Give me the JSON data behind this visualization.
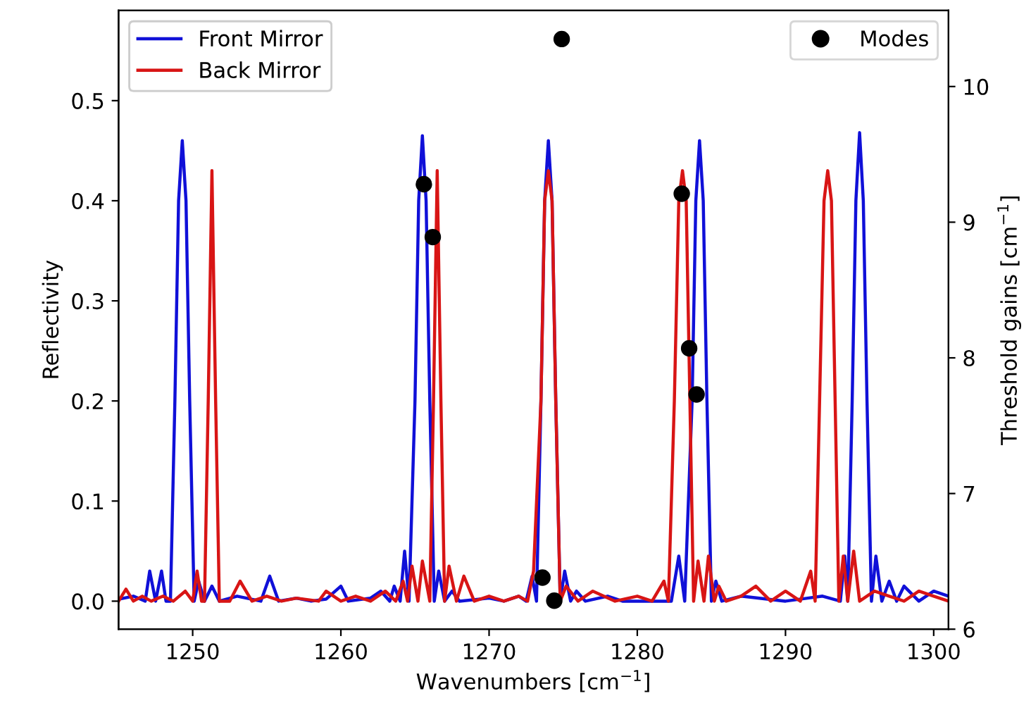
{
  "chart_data": {
    "type": "line",
    "xlabel": "Wavenumbers [cm$^{−1}$]",
    "ylabel": "Reflectivity",
    "y2label": "Threshold gains [cm$^{−1}$]",
    "xlim": [
      1245,
      1301
    ],
    "xticks": [
      1250,
      1260,
      1270,
      1280,
      1290,
      1300
    ],
    "ylim": [
      -0.028,
      0.59
    ],
    "yticks": [
      {
        "value": 0,
        "label": "0.0"
      },
      {
        "value": 0.1,
        "label": "0.1"
      },
      {
        "value": 0.2,
        "label": "0.2"
      },
      {
        "value": 0.3,
        "label": "0.3"
      },
      {
        "value": 0.4,
        "label": "0.4"
      },
      {
        "value": 0.5,
        "label": "0.5"
      }
    ],
    "y2lim": [
      6,
      10.56
    ],
    "y2ticks": [
      6,
      7,
      8,
      9,
      10
    ],
    "grid": false,
    "legend": "top left",
    "marker": "none",
    "line_style": "solid",
    "series": [
      {
        "name": "Front Mirror",
        "color": "#1010d8",
        "x": [
          1245,
          1246,
          1246.8,
          1247.1,
          1247.5,
          1247.9,
          1248.2,
          1248.5,
          1248.8,
          1249.05,
          1249.3,
          1249.55,
          1249.8,
          1250.1,
          1250.4,
          1250.8,
          1251.3,
          1251.8,
          1253,
          1254.6,
          1255.2,
          1255.8,
          1257,
          1258,
          1259,
          1260,
          1260.5,
          1262,
          1262.7,
          1263.3,
          1263.6,
          1264,
          1264.3,
          1264.6,
          1265.0,
          1265.25,
          1265.5,
          1265.75,
          1266.0,
          1266.3,
          1266.6,
          1267,
          1267.5,
          1268,
          1270,
          1271,
          1272,
          1272.5,
          1272.9,
          1273.2,
          1273.5,
          1273.75,
          1274.0,
          1274.25,
          1274.5,
          1274.8,
          1275.1,
          1275.5,
          1275.9,
          1276.5,
          1278,
          1279,
          1281,
          1282.3,
          1282.8,
          1283.2,
          1283.7,
          1283.95,
          1284.2,
          1284.45,
          1284.7,
          1285.0,
          1285.3,
          1285.7,
          1287,
          1290,
          1291.5,
          1292.5,
          1293.7,
          1294.0,
          1294.2,
          1294.5,
          1294.75,
          1295.0,
          1295.25,
          1295.5,
          1295.8,
          1296.1,
          1296.5,
          1297,
          1297.5,
          1298,
          1299,
          1300,
          1301
        ],
        "values": [
          0.002,
          0.005,
          0.0,
          0.03,
          0.0,
          0.03,
          0.0,
          0.0,
          0.2,
          0.4,
          0.46,
          0.4,
          0.2,
          0.0,
          0.02,
          0.0,
          0.015,
          0.0,
          0.005,
          0.0,
          0.025,
          0.0,
          0.003,
          0.0,
          0.002,
          0.015,
          0.0,
          0.003,
          0.01,
          0.0,
          0.015,
          0.0,
          0.05,
          0.0,
          0.2,
          0.4,
          0.465,
          0.4,
          0.2,
          0.0,
          0.03,
          0.0,
          0.01,
          0.0,
          0.003,
          0.0,
          0.005,
          0.0,
          0.025,
          0.0,
          0.2,
          0.4,
          0.46,
          0.4,
          0.2,
          0.0,
          0.03,
          0.0,
          0.01,
          0.0,
          0.005,
          0.0,
          0.0,
          0.0,
          0.045,
          0.0,
          0.2,
          0.4,
          0.46,
          0.4,
          0.2,
          0.0,
          0.02,
          0.0,
          0.005,
          0.0,
          0.003,
          0.005,
          0.0,
          0.045,
          0.0,
          0.2,
          0.4,
          0.468,
          0.4,
          0.2,
          0.0,
          0.045,
          0.0,
          0.02,
          0.0,
          0.015,
          0.0,
          0.01,
          0.005
        ]
      },
      {
        "name": "Back Mirror",
        "color": "#d81515",
        "x": [
          1245,
          1245.5,
          1246,
          1246.6,
          1247.2,
          1248,
          1248.7,
          1249.5,
          1250,
          1250.3,
          1250.6,
          1250.8,
          1251.05,
          1251.3,
          1251.55,
          1251.8,
          1252.1,
          1252.5,
          1253.2,
          1254,
          1255,
          1256,
          1257,
          1258.5,
          1259,
          1260,
          1261,
          1262,
          1263,
          1263.7,
          1264.2,
          1264.5,
          1264.8,
          1265.2,
          1265.5,
          1266.0,
          1266.25,
          1266.5,
          1266.75,
          1267.0,
          1267.3,
          1267.8,
          1268.3,
          1269,
          1270,
          1271,
          1272,
          1272.6,
          1273.0,
          1273.5,
          1273.75,
          1274.0,
          1274.25,
          1274.5,
          1274.8,
          1275.2,
          1276,
          1277,
          1278.5,
          1280,
          1281,
          1281.8,
          1282.1,
          1282.5,
          1282.8,
          1283.05,
          1283.3,
          1283.55,
          1283.8,
          1284.1,
          1284.5,
          1284.8,
          1285.2,
          1285.5,
          1286,
          1287,
          1288,
          1289,
          1290,
          1291,
          1291.7,
          1292.0,
          1292.3,
          1292.6,
          1292.85,
          1293.1,
          1293.35,
          1293.6,
          1293.9,
          1294.2,
          1294.6,
          1295,
          1296,
          1297,
          1298,
          1299,
          1300,
          1301
        ],
        "values": [
          0.0,
          0.012,
          0.0,
          0.005,
          0.0,
          0.005,
          0.0,
          0.01,
          0.0,
          0.03,
          0.0,
          0.0,
          0.2,
          0.43,
          0.2,
          0.0,
          0.0,
          0.0,
          0.02,
          0.0,
          0.005,
          0.0,
          0.003,
          0.0,
          0.01,
          0.0,
          0.005,
          0.0,
          0.01,
          0.0,
          0.02,
          0.0,
          0.035,
          0.0,
          0.04,
          0.0,
          0.2,
          0.43,
          0.2,
          0.0,
          0.035,
          0.0,
          0.025,
          0.0,
          0.005,
          0.0,
          0.005,
          0.0,
          0.03,
          0.2,
          0.4,
          0.43,
          0.4,
          0.2,
          0.0,
          0.015,
          0.0,
          0.01,
          0.0,
          0.005,
          0.0,
          0.02,
          0.0,
          0.2,
          0.4,
          0.43,
          0.4,
          0.2,
          0.0,
          0.04,
          0.0,
          0.045,
          0.0,
          0.015,
          0.0,
          0.005,
          0.015,
          0.0,
          0.01,
          0.0,
          0.03,
          0.0,
          0.2,
          0.4,
          0.43,
          0.4,
          0.2,
          0.0,
          0.045,
          0.0,
          0.05,
          0.0,
          0.01,
          0.005,
          0.0,
          0.01,
          0.005,
          0.0
        ]
      },
      {
        "name": "Modes",
        "type": "scatter",
        "axis": "y2",
        "marker": "circle",
        "color": "#000000",
        "x": [
          1265.6,
          1266.2,
          1273.6,
          1274.4,
          1274.9,
          1283.0,
          1283.5,
          1284.0
        ],
        "values": [
          9.28,
          8.89,
          6.38,
          6.21,
          10.35,
          9.21,
          8.07,
          7.73
        ]
      }
    ]
  }
}
